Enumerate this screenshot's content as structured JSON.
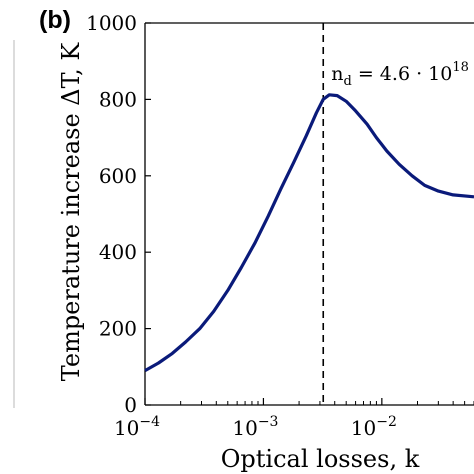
{
  "panel_label": "(b)",
  "chart_data": {
    "type": "line",
    "xlabel": "Optical losses, k",
    "ylabel": "Temperature increase ΔT, K",
    "x_scale": "log",
    "xlim": [
      0.0001,
      0.06
    ],
    "ylim": [
      0,
      1000
    ],
    "y_ticks": [
      0,
      200,
      400,
      600,
      800,
      1000
    ],
    "x_ticks": [
      {
        "value": 0.0001,
        "base": "10",
        "exp": "−4"
      },
      {
        "value": 0.001,
        "base": "10",
        "exp": "−3"
      },
      {
        "value": 0.01,
        "base": "10",
        "exp": "−2"
      }
    ],
    "grid": false,
    "series": [
      {
        "color": "#0a1a7a",
        "x": [
          0.0001,
          0.00013,
          0.00017,
          0.00022,
          0.00029,
          0.00038,
          0.0005,
          0.00065,
          0.00085,
          0.0011,
          0.0014,
          0.0018,
          0.0023,
          0.0028,
          0.0032,
          0.0036,
          0.0042,
          0.005,
          0.006,
          0.0075,
          0.009,
          0.011,
          0.014,
          0.018,
          0.023,
          0.03,
          0.04,
          0.06
        ],
        "y": [
          90,
          110,
          135,
          165,
          200,
          245,
          300,
          360,
          425,
          495,
          565,
          635,
          705,
          765,
          800,
          812,
          810,
          795,
          770,
          735,
          700,
          665,
          630,
          600,
          575,
          560,
          550,
          545
        ]
      }
    ],
    "annotation": {
      "x": 0.0032,
      "text_main": "n",
      "text_sub": "d",
      "text_rest": " = 4.6 · 10",
      "text_sup": "18"
    }
  }
}
